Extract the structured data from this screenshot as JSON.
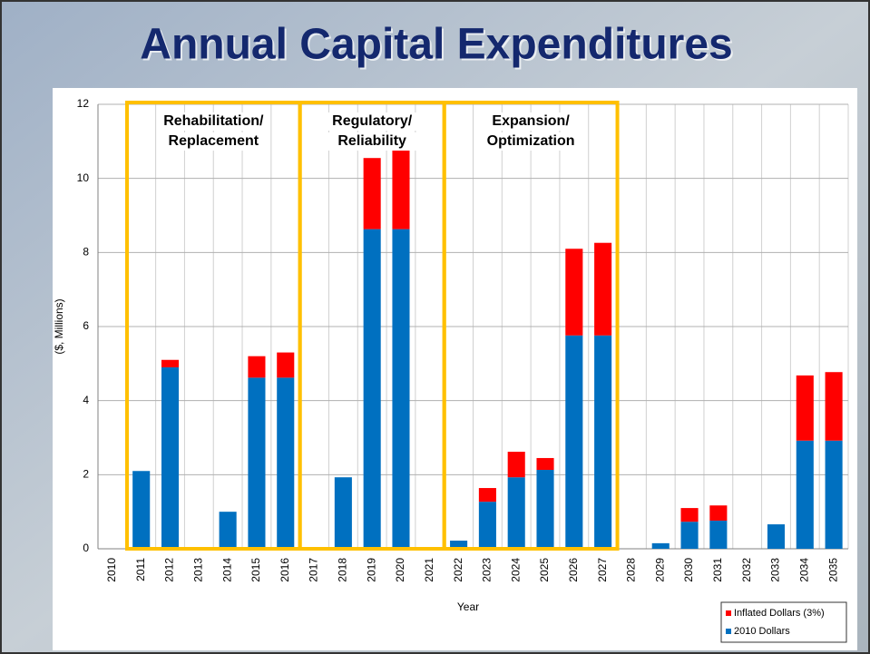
{
  "chart_data": {
    "type": "stacked_bar",
    "title": "Annual Capital Expenditures",
    "x_label": "Year",
    "y_label": "($, Millions)",
    "categories": [
      "2010",
      "2011",
      "2012",
      "2013",
      "2014",
      "2015",
      "2016",
      "2017",
      "2018",
      "2019",
      "2020",
      "2021",
      "2022",
      "2023",
      "2024",
      "2025",
      "2026",
      "2027",
      "2028",
      "2029",
      "2030",
      "2031",
      "2032",
      "2033",
      "2034",
      "2035"
    ],
    "series": [
      {
        "name": "2010 Dollars",
        "color": "#0070c0",
        "values": [
          0,
          2.1,
          4.9,
          0,
          1.0,
          4.62,
          4.62,
          0,
          1.93,
          8.63,
          8.63,
          0,
          0.22,
          1.27,
          1.93,
          2.13,
          5.76,
          5.76,
          0,
          0.15,
          0.73,
          0.76,
          0,
          0.66,
          2.92,
          2.92
        ]
      },
      {
        "name": "Inflated Dollars (3%)",
        "color": "#ff0000",
        "values": [
          0,
          0,
          0.2,
          0,
          0,
          0.58,
          0.68,
          0,
          0,
          1.92,
          2.12,
          0,
          0,
          0.37,
          0.69,
          0.32,
          2.34,
          2.5,
          0,
          0,
          0.37,
          0.41,
          0,
          0,
          1.76,
          1.85
        ]
      }
    ],
    "ylim": [
      0,
      12
    ],
    "yticks": [
      0,
      2,
      4,
      6,
      8,
      10,
      12
    ],
    "grid": true,
    "legend": "bottom-right",
    "annotations": [
      {
        "lines": [
          "Rehabilitation/",
          "Replacement"
        ]
      },
      {
        "lines": [
          "Regulatory/",
          "Reliability"
        ]
      },
      {
        "lines": [
          "Expansion/",
          "Optimization"
        ]
      }
    ]
  }
}
